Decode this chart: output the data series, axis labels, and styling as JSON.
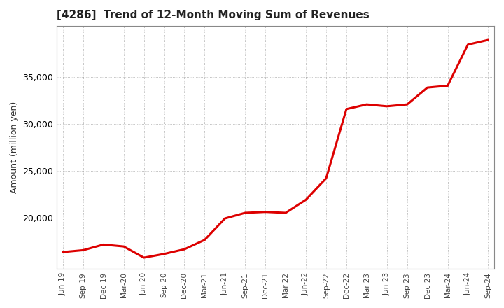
{
  "title": "[4286]  Trend of 12-Month Moving Sum of Revenues",
  "ylabel": "Amount (million yen)",
  "line_color": "#dd0000",
  "line_width": 2.2,
  "background_color": "#ffffff",
  "plot_background_color": "#ffffff",
  "grid_color": "#999999",
  "ylim": [
    14500,
    40500
  ],
  "yticks": [
    20000,
    25000,
    30000,
    35000
  ],
  "labels": [
    "Jun-19",
    "Sep-19",
    "Dec-19",
    "Mar-20",
    "Jun-20",
    "Sep-20",
    "Dec-20",
    "Mar-21",
    "Jun-21",
    "Sep-21",
    "Dec-21",
    "Mar-22",
    "Jun-22",
    "Sep-22",
    "Dec-22",
    "Mar-23",
    "Jun-23",
    "Sep-23",
    "Dec-23",
    "Mar-24",
    "Jun-24",
    "Sep-24"
  ],
  "values": [
    16300,
    16500,
    17100,
    16900,
    15700,
    16100,
    16600,
    17600,
    19900,
    20500,
    20600,
    20500,
    21900,
    24200,
    31600,
    32100,
    31900,
    32100,
    33900,
    34100,
    38500,
    39000
  ]
}
